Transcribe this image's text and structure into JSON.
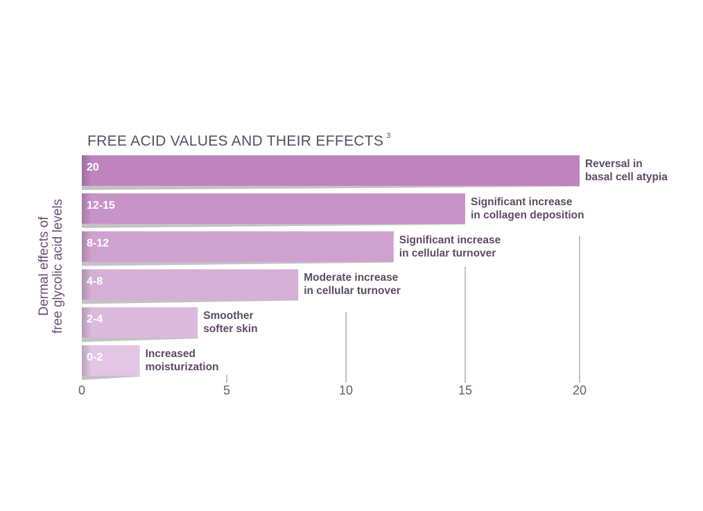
{
  "chart_data": {
    "type": "bar",
    "orientation": "horizontal",
    "title": "FREE ACID VALUES AND THEIR EFFECTS",
    "title_superscript": "3",
    "ylabel": [
      "Dermal effects of",
      "free glycolic acid levels"
    ],
    "xlabel": "",
    "xlim": [
      0,
      20
    ],
    "xticks": [
      0,
      5,
      10,
      15,
      20
    ],
    "grid": false,
    "categories": [
      "20",
      "12-15",
      "8-12",
      "4-8",
      "2-4",
      "0-2"
    ],
    "values": [
      20,
      15,
      12,
      8,
      4,
      2
    ],
    "annotations": [
      [
        "Reversal in",
        "basal cell atypia"
      ],
      [
        "Significant increase",
        "in collagen deposition"
      ],
      [
        "Significant increase",
        "in cellular turnover"
      ],
      [
        "Moderate increase",
        "in cellular turnover"
      ],
      [
        "Smoother",
        "softer skin"
      ],
      [
        "Increased",
        "moisturization"
      ]
    ],
    "colors": [
      "#bf84bf",
      "#c793c8",
      "#cea2cf",
      "#d5afd6",
      "#dcbadd",
      "#e2c6e3"
    ]
  }
}
